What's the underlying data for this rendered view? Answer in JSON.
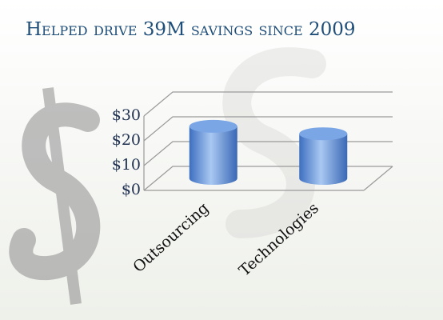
{
  "chart_data": {
    "type": "bar3d",
    "title": "Helped drive 39M savings since 2009",
    "categories": [
      "Outsourcing",
      "Technologies"
    ],
    "values": [
      21,
      18
    ],
    "color": "#5b8fd6",
    "ylim": [
      0,
      30
    ],
    "yticks": [
      {
        "value": 0,
        "label": "$0"
      },
      {
        "value": 10,
        "label": "$10"
      },
      {
        "value": 20,
        "label": "$20"
      },
      {
        "value": 30,
        "label": "$30"
      }
    ],
    "grid": true
  }
}
